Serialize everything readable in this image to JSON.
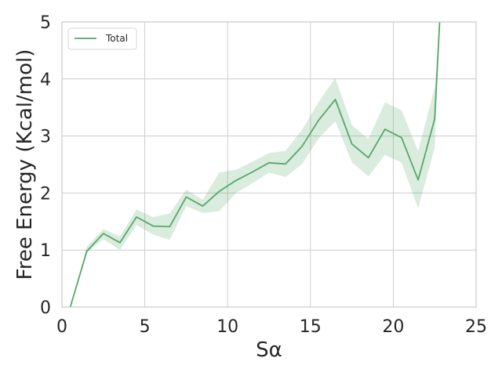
{
  "chart_data": {
    "type": "line",
    "xlabel": "Sα",
    "ylabel": "Free Energy (Kcal/mol)",
    "xlim": [
      0,
      25
    ],
    "ylim": [
      0,
      5
    ],
    "xticks": [
      0,
      5,
      10,
      15,
      20,
      25
    ],
    "yticks": [
      0,
      1,
      2,
      3,
      4,
      5
    ],
    "grid": true,
    "legend": "top-left",
    "series": [
      {
        "name": "Total",
        "color": "#55a868",
        "x": [
          0.5,
          1.5,
          2.5,
          3.5,
          4.5,
          5.5,
          6.5,
          7.5,
          8.5,
          9.5,
          10.5,
          11.5,
          12.5,
          13.5,
          14.5,
          15.5,
          16.5,
          17.5,
          18.5,
          19.5,
          20.5,
          21.5,
          22.5,
          22.8
        ],
        "y": [
          0.0,
          0.98,
          1.29,
          1.13,
          1.58,
          1.42,
          1.41,
          1.93,
          1.77,
          2.03,
          2.22,
          2.37,
          2.53,
          2.51,
          2.82,
          3.28,
          3.64,
          2.86,
          2.62,
          3.12,
          2.97,
          2.23,
          3.3,
          5.0
        ],
        "lower": [
          0.0,
          0.95,
          1.19,
          1.0,
          1.44,
          1.27,
          1.18,
          1.77,
          1.65,
          1.68,
          2.0,
          2.17,
          2.36,
          2.28,
          2.51,
          2.96,
          3.26,
          2.54,
          2.29,
          2.67,
          2.53,
          1.73,
          2.8,
          5.0
        ],
        "upper": [
          0.0,
          1.06,
          1.37,
          1.24,
          1.71,
          1.58,
          1.64,
          2.06,
          1.88,
          2.36,
          2.41,
          2.55,
          2.7,
          2.74,
          3.11,
          3.6,
          4.02,
          3.19,
          2.95,
          3.59,
          3.45,
          2.73,
          3.85,
          5.0
        ]
      }
    ]
  }
}
